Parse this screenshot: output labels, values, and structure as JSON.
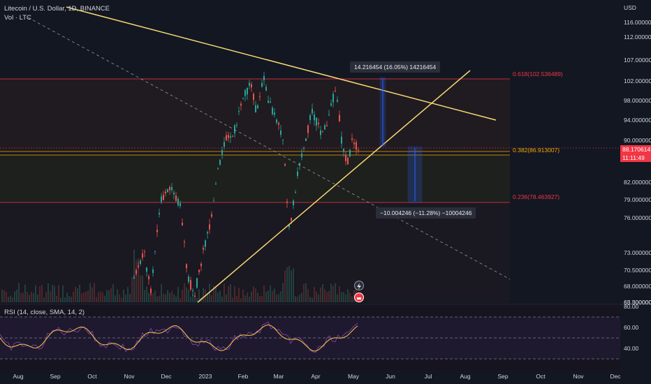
{
  "header": {
    "title": "Litecoin / U.S. Dollar, 1D, BINANCE",
    "volume_label": "Vol · LTC"
  },
  "rsi": {
    "label": "RSI (14, close, SMA, 14, 2)",
    "levels": [
      "80.00",
      "60.00",
      "40.00"
    ]
  },
  "price_axis": {
    "currency": "USD",
    "labels": [
      "116.000000",
      "112.000000",
      "107.000000",
      "102.000000",
      "98.000000",
      "94.000000",
      "90.000000",
      "82.000000",
      "79.000000",
      "76.000000",
      "73.000000",
      "70.500000",
      "68.000000",
      "65.500000",
      "63.300000"
    ]
  },
  "price_tag": {
    "value": "88.170614",
    "countdown": "11:11:49"
  },
  "time_axis": [
    "Aug",
    "Sep",
    "Oct",
    "Nov",
    "Dec",
    "2023",
    "Feb",
    "Mar",
    "Apr",
    "May",
    "Jun",
    "Jul",
    "Aug",
    "Sep",
    "Oct",
    "Nov",
    "Dec"
  ],
  "fibonacci": [
    {
      "label": "0.618(102.536489)",
      "color": "#f23645"
    },
    {
      "label": "0.382(86.913007)",
      "color": "#f7a600"
    },
    {
      "label": "0.236(78.463927)",
      "color": "#f23645"
    }
  ],
  "measurements": {
    "up": "14.216454 (16.05%) 14216454",
    "down": "−10.004246 (−11.28%) −10004246"
  },
  "colors": {
    "background": "#131722",
    "up": "#26a69a",
    "down": "#ef5350",
    "trendline": "#f7d774",
    "rsi_line": "#f7c948"
  }
}
